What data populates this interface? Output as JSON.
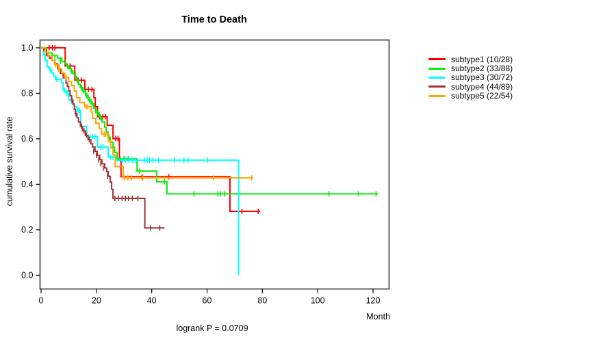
{
  "chart_data": {
    "type": "line",
    "subtype": "kaplan-meier-step-curves",
    "title": "Time to Death",
    "xlabel": "Month",
    "ylabel": "cumulative survival rate",
    "annotation": "logrank P = 0.0709",
    "xlim": [
      0,
      126
    ],
    "ylim": [
      0.0,
      1.0
    ],
    "x_ticks": [
      0,
      20,
      40,
      60,
      80,
      100,
      120
    ],
    "y_ticks": [
      "0.0",
      "0.2",
      "0.4",
      "0.6",
      "0.8",
      "1.0"
    ],
    "y_tick_values": [
      0.0,
      0.2,
      0.4,
      0.6,
      0.8,
      1.0
    ],
    "grid": false,
    "legend_position": "right-outside",
    "series": [
      {
        "name": "subtype1",
        "legend_label": "subtype1 (10/28)",
        "color": "#ff0000",
        "steps": [
          [
            0,
            1.0
          ],
          [
            8.7,
            0.92
          ],
          [
            12.2,
            0.857
          ],
          [
            15.8,
            0.817
          ],
          [
            19.1,
            0.78
          ],
          [
            19.6,
            0.741
          ],
          [
            20.4,
            0.697
          ],
          [
            23.9,
            0.659
          ],
          [
            26,
            0.601
          ],
          [
            28.3,
            0.509
          ],
          [
            28.9,
            0.433
          ],
          [
            68.3,
            0.281
          ],
          [
            79.2,
            0.281
          ]
        ],
        "censors": [
          [
            2.9,
            1.0
          ],
          [
            4.1,
            1.0
          ],
          [
            5.0,
            1.0
          ],
          [
            10.5,
            0.92
          ],
          [
            13.4,
            0.857
          ],
          [
            14.6,
            0.857
          ],
          [
            17.1,
            0.817
          ],
          [
            18.4,
            0.817
          ],
          [
            21.2,
            0.697
          ],
          [
            22.3,
            0.697
          ],
          [
            23.3,
            0.697
          ],
          [
            27.0,
            0.601
          ],
          [
            27.8,
            0.601
          ],
          [
            36.5,
            0.433
          ],
          [
            46.2,
            0.433
          ],
          [
            72.6,
            0.281
          ],
          [
            78.5,
            0.281
          ]
        ]
      },
      {
        "name": "subtype2",
        "legend_label": "subtype2 (33/88)",
        "color": "#00ee00",
        "steps": [
          [
            0,
            1.0
          ],
          [
            2,
            0.977
          ],
          [
            4,
            0.966
          ],
          [
            6,
            0.955
          ],
          [
            7.5,
            0.94
          ],
          [
            8.5,
            0.93
          ],
          [
            9.3,
            0.92
          ],
          [
            10,
            0.909
          ],
          [
            10.8,
            0.898
          ],
          [
            11.5,
            0.886
          ],
          [
            12.4,
            0.875
          ],
          [
            12.8,
            0.858
          ],
          [
            13.5,
            0.84
          ],
          [
            14.2,
            0.825
          ],
          [
            15,
            0.81
          ],
          [
            16.1,
            0.79
          ],
          [
            17,
            0.772
          ],
          [
            18,
            0.755
          ],
          [
            19,
            0.735
          ],
          [
            19.8,
            0.715
          ],
          [
            21,
            0.694
          ],
          [
            22,
            0.674
          ],
          [
            23,
            0.651
          ],
          [
            23.5,
            0.629
          ],
          [
            24.2,
            0.607
          ],
          [
            25,
            0.585
          ],
          [
            26,
            0.563
          ],
          [
            26.6,
            0.54
          ],
          [
            27.5,
            0.512
          ],
          [
            34.7,
            0.458
          ],
          [
            41.8,
            0.411
          ],
          [
            45.5,
            0.358
          ],
          [
            121.8,
            0.358
          ]
        ],
        "censors": [
          [
            5,
            0.955
          ],
          [
            7,
            0.94
          ],
          [
            9.6,
            0.92
          ],
          [
            11,
            0.898
          ],
          [
            13,
            0.858
          ],
          [
            14.6,
            0.825
          ],
          [
            15.5,
            0.81
          ],
          [
            16.5,
            0.79
          ],
          [
            17.5,
            0.772
          ],
          [
            18.5,
            0.755
          ],
          [
            20.3,
            0.715
          ],
          [
            21.5,
            0.694
          ],
          [
            24.6,
            0.607
          ],
          [
            28.6,
            0.512
          ],
          [
            30,
            0.512
          ],
          [
            31.5,
            0.512
          ],
          [
            35.6,
            0.458
          ],
          [
            44.6,
            0.411
          ],
          [
            55.3,
            0.358
          ],
          [
            63.9,
            0.358
          ],
          [
            64.8,
            0.358
          ],
          [
            66.4,
            0.358
          ],
          [
            104.1,
            0.358
          ],
          [
            114.7,
            0.358
          ],
          [
            121.1,
            0.358
          ]
        ]
      },
      {
        "name": "subtype3",
        "legend_label": "subtype3 (30/72)",
        "color": "#00ffff",
        "steps": [
          [
            0,
            1.0
          ],
          [
            0.8,
            0.972
          ],
          [
            1.5,
            0.944
          ],
          [
            2.2,
            0.917
          ],
          [
            3,
            0.903
          ],
          [
            3.8,
            0.889
          ],
          [
            4.5,
            0.875
          ],
          [
            5.2,
            0.861
          ],
          [
            7.4,
            0.847
          ],
          [
            8,
            0.814
          ],
          [
            9,
            0.8
          ],
          [
            10,
            0.77
          ],
          [
            11,
            0.755
          ],
          [
            12,
            0.74
          ],
          [
            13,
            0.725
          ],
          [
            14.3,
            0.654
          ],
          [
            16.5,
            0.609
          ],
          [
            20.4,
            0.564
          ],
          [
            24.3,
            0.519
          ],
          [
            27,
            0.506
          ],
          [
            71.4,
            0.0
          ]
        ],
        "censors": [
          [
            3.3,
            0.903
          ],
          [
            5.6,
            0.861
          ],
          [
            8.5,
            0.814
          ],
          [
            9.4,
            0.8
          ],
          [
            13.4,
            0.725
          ],
          [
            13.8,
            0.725
          ],
          [
            17.7,
            0.609
          ],
          [
            18.6,
            0.609
          ],
          [
            19.4,
            0.609
          ],
          [
            21.5,
            0.564
          ],
          [
            22.4,
            0.564
          ],
          [
            25.2,
            0.519
          ],
          [
            26,
            0.519
          ],
          [
            29.5,
            0.506
          ],
          [
            30.5,
            0.506
          ],
          [
            31.8,
            0.506
          ],
          [
            33,
            0.506
          ],
          [
            34.2,
            0.506
          ],
          [
            37.5,
            0.506
          ],
          [
            38.4,
            0.506
          ],
          [
            39.2,
            0.506
          ],
          [
            40.4,
            0.506
          ],
          [
            42.5,
            0.506
          ],
          [
            48.3,
            0.506
          ],
          [
            51.6,
            0.506
          ],
          [
            53.2,
            0.506
          ],
          [
            60.2,
            0.506
          ]
        ]
      },
      {
        "name": "subtype4",
        "legend_label": "subtype4 (44/89)",
        "color": "#a03232",
        "steps": [
          [
            0,
            1.0
          ],
          [
            1,
            0.989
          ],
          [
            2,
            0.966
          ],
          [
            3,
            0.955
          ],
          [
            4,
            0.944
          ],
          [
            5,
            0.93
          ],
          [
            6,
            0.907
          ],
          [
            7,
            0.888
          ],
          [
            8,
            0.868
          ],
          [
            9,
            0.845
          ],
          [
            9.5,
            0.83
          ],
          [
            10,
            0.81
          ],
          [
            10.5,
            0.79
          ],
          [
            11,
            0.77
          ],
          [
            11.5,
            0.752
          ],
          [
            12,
            0.73
          ],
          [
            12.4,
            0.71
          ],
          [
            13,
            0.692
          ],
          [
            13.5,
            0.674
          ],
          [
            14.2,
            0.655
          ],
          [
            15,
            0.635
          ],
          [
            16,
            0.615
          ],
          [
            17,
            0.596
          ],
          [
            18,
            0.578
          ],
          [
            18.6,
            0.564
          ],
          [
            19.5,
            0.545
          ],
          [
            20.3,
            0.527
          ],
          [
            21.2,
            0.508
          ],
          [
            22,
            0.49
          ],
          [
            23,
            0.472
          ],
          [
            23.7,
            0.455
          ],
          [
            24.3,
            0.435
          ],
          [
            25,
            0.41
          ],
          [
            25.5,
            0.378
          ],
          [
            26,
            0.338
          ],
          [
            37.5,
            0.208
          ],
          [
            44.6,
            0.208
          ]
        ],
        "censors": [
          [
            11.2,
            0.77
          ],
          [
            12.6,
            0.71
          ],
          [
            14.6,
            0.655
          ],
          [
            15.5,
            0.635
          ],
          [
            16.4,
            0.615
          ],
          [
            17.4,
            0.596
          ],
          [
            19,
            0.545
          ],
          [
            20,
            0.527
          ],
          [
            20.8,
            0.508
          ],
          [
            21.6,
            0.49
          ],
          [
            22.5,
            0.472
          ],
          [
            24,
            0.435
          ],
          [
            26.7,
            0.338
          ],
          [
            28,
            0.338
          ],
          [
            29.3,
            0.338
          ],
          [
            30.5,
            0.338
          ],
          [
            31.6,
            0.338
          ],
          [
            33,
            0.338
          ],
          [
            35,
            0.338
          ],
          [
            39.6,
            0.208
          ],
          [
            42.9,
            0.208
          ]
        ]
      },
      {
        "name": "subtype5",
        "legend_label": "subtype5 (22/54)",
        "color": "#ffa500",
        "steps": [
          [
            0,
            1.0
          ],
          [
            1.5,
            0.981
          ],
          [
            2.5,
            0.963
          ],
          [
            4,
            0.944
          ],
          [
            5,
            0.926
          ],
          [
            6.5,
            0.907
          ],
          [
            7.5,
            0.889
          ],
          [
            8.5,
            0.87
          ],
          [
            10,
            0.852
          ],
          [
            11,
            0.833
          ],
          [
            12,
            0.81
          ],
          [
            12.8,
            0.78
          ],
          [
            14,
            0.76
          ],
          [
            15.7,
            0.74
          ],
          [
            18.1,
            0.718
          ],
          [
            18.6,
            0.69
          ],
          [
            19.8,
            0.668
          ],
          [
            21,
            0.645
          ],
          [
            21.9,
            0.62
          ],
          [
            24.3,
            0.59
          ],
          [
            25.2,
            0.56
          ],
          [
            26,
            0.53
          ],
          [
            26.8,
            0.478
          ],
          [
            29.7,
            0.428
          ],
          [
            76.7,
            0.428
          ]
        ],
        "censors": [
          [
            5.2,
            0.926
          ],
          [
            6.3,
            0.907
          ],
          [
            9,
            0.87
          ],
          [
            16.3,
            0.74
          ],
          [
            16.9,
            0.74
          ],
          [
            22.8,
            0.62
          ],
          [
            23.4,
            0.62
          ],
          [
            30.1,
            0.428
          ],
          [
            31.4,
            0.428
          ],
          [
            32.6,
            0.428
          ],
          [
            36.8,
            0.428
          ],
          [
            62.3,
            0.428
          ],
          [
            76.1,
            0.428
          ]
        ]
      }
    ]
  }
}
